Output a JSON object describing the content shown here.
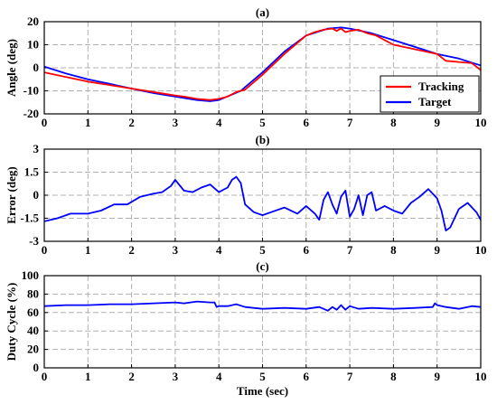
{
  "chart_data": [
    {
      "type": "line",
      "title": "(a)",
      "xlabel": "",
      "ylabel": "Angle (deg)",
      "xlim": [
        0,
        10
      ],
      "ylim": [
        -20,
        20
      ],
      "xticks": [
        0,
        1,
        2,
        3,
        4,
        5,
        6,
        7,
        8,
        9,
        10
      ],
      "yticks": [
        20,
        10,
        0,
        -10,
        -20
      ],
      "grid": true,
      "legend_position": "bottom-right",
      "series": [
        {
          "name": "Tracking",
          "color": "#ff0000",
          "x": [
            0,
            0.5,
            1,
            1.5,
            2,
            2.5,
            3,
            3.2,
            3.5,
            3.8,
            4,
            4.2,
            4.4,
            4.6,
            5,
            5.5,
            6,
            6.2,
            6.4,
            6.6,
            6.7,
            6.8,
            6.9,
            7,
            7.2,
            7.4,
            7.6,
            8,
            8.5,
            9,
            9.2,
            9.5,
            9.8,
            10
          ],
          "y": [
            -2,
            -4,
            -6,
            -7.5,
            -9,
            -10.5,
            -12,
            -12.5,
            -13.5,
            -14,
            -13.5,
            -12.5,
            -10.5,
            -9.5,
            -3,
            6,
            14,
            15.5,
            16.5,
            17,
            16,
            17,
            15.5,
            16,
            16.5,
            15,
            14,
            10,
            8,
            6,
            3,
            2.5,
            2,
            -1
          ]
        },
        {
          "name": "Target",
          "color": "#0000ff",
          "x": [
            0,
            0.5,
            1,
            1.5,
            2,
            2.5,
            3,
            3.5,
            3.8,
            4,
            4.5,
            5,
            5.5,
            6,
            6.5,
            6.8,
            7,
            7.5,
            8,
            8.5,
            9,
            9.5,
            10
          ],
          "y": [
            0.5,
            -2.5,
            -5,
            -7,
            -9,
            -11,
            -12.5,
            -14,
            -14.5,
            -14,
            -10,
            -2,
            7,
            14,
            17,
            17.5,
            17,
            15,
            12,
            9,
            6,
            4,
            1
          ]
        }
      ]
    },
    {
      "type": "line",
      "title": "(b)",
      "xlabel": "",
      "ylabel": "Error (deg)",
      "xlim": [
        0,
        10
      ],
      "ylim": [
        -3,
        3
      ],
      "xticks": [
        0,
        1,
        2,
        3,
        4,
        5,
        6,
        7,
        8,
        9,
        10
      ],
      "yticks": [
        3,
        1.5,
        0,
        -1.5,
        -3
      ],
      "grid": true,
      "series": [
        {
          "color": "#0000ff",
          "x": [
            0,
            0.3,
            0.6,
            1,
            1.3,
            1.6,
            1.9,
            2.2,
            2.5,
            2.7,
            2.9,
            3,
            3.2,
            3.4,
            3.6,
            3.8,
            4,
            4.2,
            4.3,
            4.4,
            4.5,
            4.6,
            4.8,
            5,
            5.2,
            5.5,
            5.8,
            6,
            6.2,
            6.3,
            6.4,
            6.5,
            6.6,
            6.7,
            6.8,
            6.9,
            7,
            7.1,
            7.2,
            7.3,
            7.4,
            7.5,
            7.6,
            7.8,
            8,
            8.2,
            8.4,
            8.6,
            8.8,
            9,
            9.1,
            9.2,
            9.3,
            9.5,
            9.7,
            9.9,
            10
          ],
          "y": [
            -1.7,
            -1.5,
            -1.2,
            -1.2,
            -1.0,
            -0.6,
            -0.6,
            -0.1,
            0.1,
            0.2,
            0.6,
            1.0,
            0.3,
            0.2,
            0.5,
            0.7,
            0.2,
            0.5,
            1.0,
            1.2,
            0.8,
            -0.6,
            -1.1,
            -1.3,
            -1.1,
            -0.8,
            -1.2,
            -0.7,
            -1.2,
            -1.6,
            -0.3,
            0.2,
            -0.6,
            -1.2,
            -0.1,
            0.3,
            -1.4,
            -0.9,
            0,
            -1.3,
            0.0,
            0.2,
            -1.0,
            -0.7,
            -1.0,
            -1.2,
            -0.5,
            -0.1,
            0.4,
            -0.2,
            -1.0,
            -2.3,
            -2.1,
            -0.9,
            -0.5,
            -1.1,
            -1.6
          ]
        }
      ]
    },
    {
      "type": "line",
      "title": "(c)",
      "xlabel": "Time (sec)",
      "ylabel": "Duty Cycle (%)",
      "xlim": [
        0,
        10
      ],
      "ylim": [
        0,
        100
      ],
      "xticks": [
        0,
        1,
        2,
        3,
        4,
        5,
        6,
        7,
        8,
        9,
        10
      ],
      "yticks": [
        100,
        80,
        60,
        40,
        20,
        0
      ],
      "grid": true,
      "series": [
        {
          "color": "#0000ff",
          "x": [
            0,
            0.5,
            1,
            1.5,
            2,
            2.5,
            3,
            3.2,
            3.5,
            3.8,
            3.9,
            3.95,
            4,
            4.2,
            4.4,
            4.6,
            5,
            5.5,
            6,
            6.3,
            6.5,
            6.6,
            6.7,
            6.8,
            6.9,
            7,
            7.2,
            7.5,
            8,
            8.5,
            8.9,
            8.95,
            9,
            9.2,
            9.5,
            9.8,
            10
          ],
          "y": [
            67,
            68,
            68,
            69,
            69,
            70,
            71,
            70,
            72,
            71,
            71,
            66,
            67,
            67,
            69,
            66,
            64,
            65,
            64,
            66,
            62,
            66,
            63,
            68,
            63,
            67,
            64,
            65,
            64,
            65,
            66,
            70,
            68,
            66,
            64,
            67,
            66
          ]
        }
      ]
    }
  ]
}
